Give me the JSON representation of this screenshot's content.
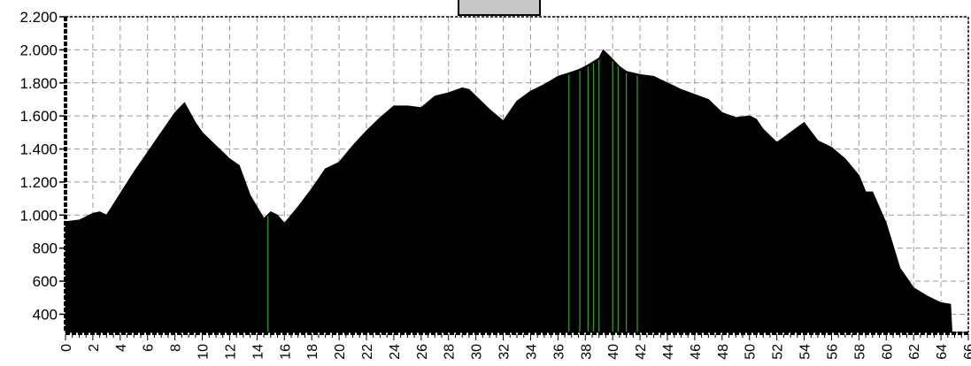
{
  "chart_data": {
    "type": "area",
    "title": "",
    "xlabel": "",
    "ylabel": "",
    "xlim": [
      0,
      66
    ],
    "ylim": [
      290,
      2200
    ],
    "y_ticks": [
      "400",
      "600",
      "800",
      "1.000",
      "1.200",
      "1.400",
      "1.600",
      "1.800",
      "2.000",
      "2.200"
    ],
    "y_tick_values": [
      400,
      600,
      800,
      1000,
      1200,
      1400,
      1600,
      1800,
      2000,
      2200
    ],
    "x_ticks": [
      "0",
      "2",
      "4",
      "6",
      "8",
      "10",
      "12",
      "14",
      "16",
      "18",
      "20",
      "22",
      "24",
      "26",
      "28",
      "30",
      "32",
      "34",
      "36",
      "38",
      "40",
      "42",
      "44",
      "46",
      "48",
      "50",
      "52",
      "54",
      "56",
      "58",
      "60",
      "62",
      "64",
      "66"
    ],
    "x_tick_values": [
      0,
      2,
      4,
      6,
      8,
      10,
      12,
      14,
      16,
      18,
      20,
      22,
      24,
      26,
      28,
      30,
      32,
      34,
      36,
      38,
      40,
      42,
      44,
      46,
      48,
      50,
      52,
      54,
      56,
      58,
      60,
      62,
      64,
      66
    ],
    "grid": true,
    "fill_color": "#000000",
    "marker_color": "#2e9a2e",
    "series": [
      {
        "x": [
          0,
          1,
          2,
          2.5,
          3,
          4,
          5,
          6,
          7,
          8,
          8.7,
          9.5,
          10,
          11,
          12,
          12.7,
          13.5,
          14.5,
          15,
          15.5,
          16,
          17,
          18,
          19,
          20,
          21,
          22,
          23,
          24,
          25,
          26,
          27,
          28,
          29,
          29.5,
          30,
          31,
          32,
          33,
          34,
          35,
          36,
          36.8,
          37.5,
          38,
          39,
          39.3,
          39.8,
          40.5,
          41,
          42,
          43,
          44,
          45,
          46,
          47,
          48,
          49,
          50,
          50.5,
          51,
          52,
          53,
          54,
          55,
          56,
          57,
          58,
          58.5,
          59,
          60,
          61,
          62,
          63,
          64,
          64.7,
          64.8,
          66
        ],
        "y": [
          960,
          970,
          1010,
          1020,
          1000,
          1130,
          1260,
          1380,
          1500,
          1620,
          1680,
          1560,
          1500,
          1420,
          1340,
          1300,
          1120,
          980,
          1020,
          1000,
          950,
          1050,
          1160,
          1280,
          1320,
          1420,
          1510,
          1590,
          1660,
          1660,
          1650,
          1720,
          1740,
          1770,
          1760,
          1720,
          1640,
          1570,
          1690,
          1750,
          1790,
          1840,
          1860,
          1880,
          1900,
          1950,
          2000,
          1960,
          1900,
          1870,
          1850,
          1840,
          1800,
          1760,
          1730,
          1700,
          1620,
          1590,
          1600,
          1580,
          1520,
          1440,
          1500,
          1560,
          1450,
          1410,
          1340,
          1240,
          1140,
          1140,
          950,
          680,
          560,
          510,
          470,
          460,
          290,
          290
        ]
      }
    ],
    "markers_x": [
      14.8,
      36.8,
      37.6,
      38.2,
      38.6,
      39.0,
      40.0,
      40.4,
      41.0,
      41.8
    ]
  }
}
